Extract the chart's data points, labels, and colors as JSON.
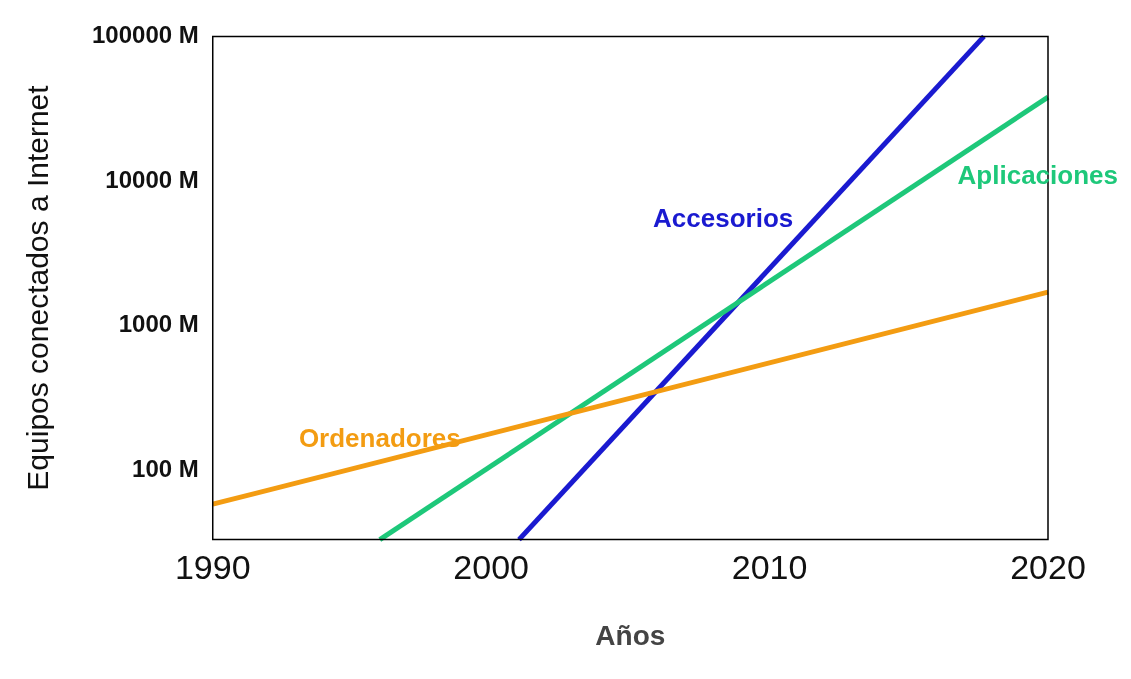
{
  "chart_data": {
    "type": "line",
    "xlabel": "Años",
    "ylabel": "Equipos conectados a Internet",
    "log": "y",
    "grid": false,
    "legend": false,
    "marker": "none",
    "line_style": "solid",
    "xlim": [
      1990,
      2020
    ],
    "xticks": [
      1990,
      2000,
      2010,
      2020
    ],
    "ylim": [
      33,
      100000
    ],
    "yticks": [
      {
        "value": 100,
        "label": "100 M"
      },
      {
        "value": 1000,
        "label": "1000 M"
      },
      {
        "value": 10000,
        "label": "10000 M"
      },
      {
        "value": 100000,
        "label": "100000 M"
      }
    ],
    "series": [
      {
        "name": "Ordenadores",
        "color": "#f39c12",
        "x": [
          1990,
          2020
        ],
        "values": [
          58,
          1700
        ]
      },
      {
        "name": "Aplicaciones",
        "color": "#1ec87a",
        "x": [
          1996,
          2020
        ],
        "values": [
          33,
          38000
        ]
      },
      {
        "name": "Accesorios",
        "color": "#1a1ad0",
        "x": [
          2001,
          2017.7
        ],
        "values": [
          33,
          100000
        ]
      }
    ]
  }
}
